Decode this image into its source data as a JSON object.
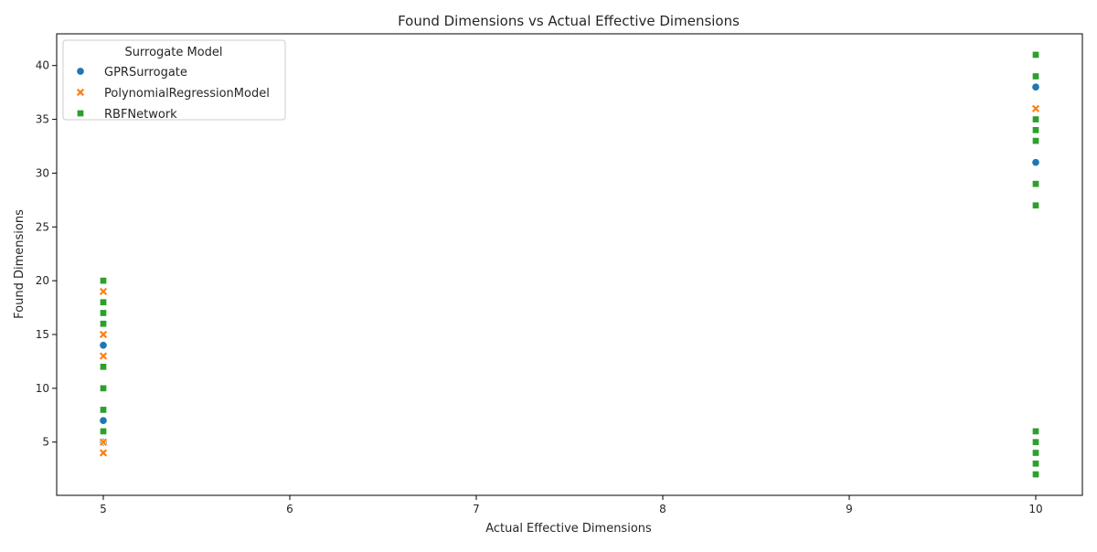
{
  "chart_data": {
    "type": "scatter",
    "title": "Found Dimensions vs Actual Effective Dimensions",
    "xlabel": "Actual Effective Dimensions",
    "ylabel": "Found Dimensions",
    "xlim": [
      4.75,
      10.25
    ],
    "ylim": [
      0.05,
      42.95
    ],
    "xticks": [
      5,
      6,
      7,
      8,
      9,
      10
    ],
    "yticks": [
      5,
      10,
      15,
      20,
      25,
      30,
      35,
      40
    ],
    "grid": false,
    "legend": {
      "title": "Surrogate Model",
      "placement": "top-left"
    },
    "series": [
      {
        "name": "GPRSurrogate",
        "marker": "circle",
        "color": "#1f77b4",
        "points": [
          [
            5,
            16
          ],
          [
            5,
            14
          ],
          [
            5,
            7
          ],
          [
            5,
            5
          ],
          [
            5,
            18
          ],
          [
            5,
            12
          ],
          [
            5,
            8
          ],
          [
            5,
            6
          ],
          [
            10,
            38
          ],
          [
            10,
            31
          ],
          [
            10,
            33
          ],
          [
            10,
            34
          ],
          [
            10,
            5
          ],
          [
            10,
            3
          ],
          [
            10,
            2
          ],
          [
            10,
            6
          ],
          [
            10,
            4
          ]
        ]
      },
      {
        "name": "PolynomialRegressionModel",
        "marker": "x",
        "color": "#ff7f0e",
        "points": [
          [
            5,
            19
          ],
          [
            5,
            18
          ],
          [
            5,
            15
          ],
          [
            5,
            13
          ],
          [
            5,
            8
          ],
          [
            5,
            6
          ],
          [
            5,
            5
          ],
          [
            5,
            4
          ],
          [
            10,
            39
          ],
          [
            10,
            36
          ],
          [
            10,
            34
          ],
          [
            10,
            33
          ],
          [
            10,
            35
          ],
          [
            10,
            5
          ],
          [
            10,
            3
          ],
          [
            10,
            2
          ]
        ]
      },
      {
        "name": "RBFNetwork",
        "marker": "square",
        "color": "#2ca02c",
        "points": [
          [
            5,
            20
          ],
          [
            5,
            18
          ],
          [
            5,
            17
          ],
          [
            5,
            16
          ],
          [
            5,
            12
          ],
          [
            5,
            10
          ],
          [
            5,
            8
          ],
          [
            5,
            6
          ],
          [
            10,
            41
          ],
          [
            10,
            39
          ],
          [
            10,
            35
          ],
          [
            10,
            34
          ],
          [
            10,
            33
          ],
          [
            10,
            29
          ],
          [
            10,
            27
          ],
          [
            10,
            6
          ],
          [
            10,
            5
          ],
          [
            10,
            4
          ],
          [
            10,
            3
          ],
          [
            10,
            2
          ]
        ]
      }
    ]
  }
}
